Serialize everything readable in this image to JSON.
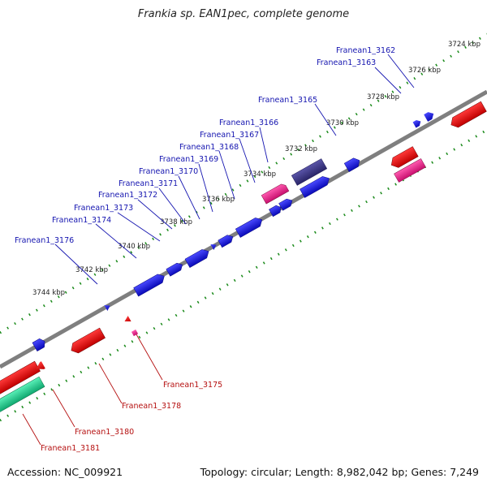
{
  "title": "Frankia sp. EAN1pec, complete genome",
  "footer": {
    "accession": "Accession: NC_009921",
    "summary": "Topology: circular; Length: 8,982,042 bp; Genes: 7,249"
  },
  "ticks": [
    "3724 kbp",
    "3726 kbp",
    "3728 kbp",
    "3730 kbp",
    "3732 kbp",
    "3734 kbp",
    "3736 kbp",
    "3738 kbp",
    "3740 kbp",
    "3742 kbp",
    "3744 kbp"
  ],
  "labels_top": [
    "Franean1_3162",
    "Franean1_3163",
    "Franean1_3165",
    "Franean1_3166",
    "Franean1_3167",
    "Franean1_3168",
    "Franean1_3169",
    "Franean1_3170",
    "Franean1_3171",
    "Franean1_3172",
    "Franean1_3173",
    "Franean1_3174",
    "Franean1_3176"
  ],
  "labels_bottom": [
    "Franean1_3175",
    "Franean1_3178",
    "Franean1_3180",
    "Franean1_3181"
  ],
  "colors": {
    "cds_forward": "#1010e0",
    "cds_reverse": "#e01010",
    "rna": "#e8208a",
    "other": "#3a3580",
    "green": "#20d090",
    "label_top": "#1515b0",
    "label_bottom": "#b51010",
    "ticks": "#1a8a1a",
    "backbone": "#7f7f7f"
  }
}
